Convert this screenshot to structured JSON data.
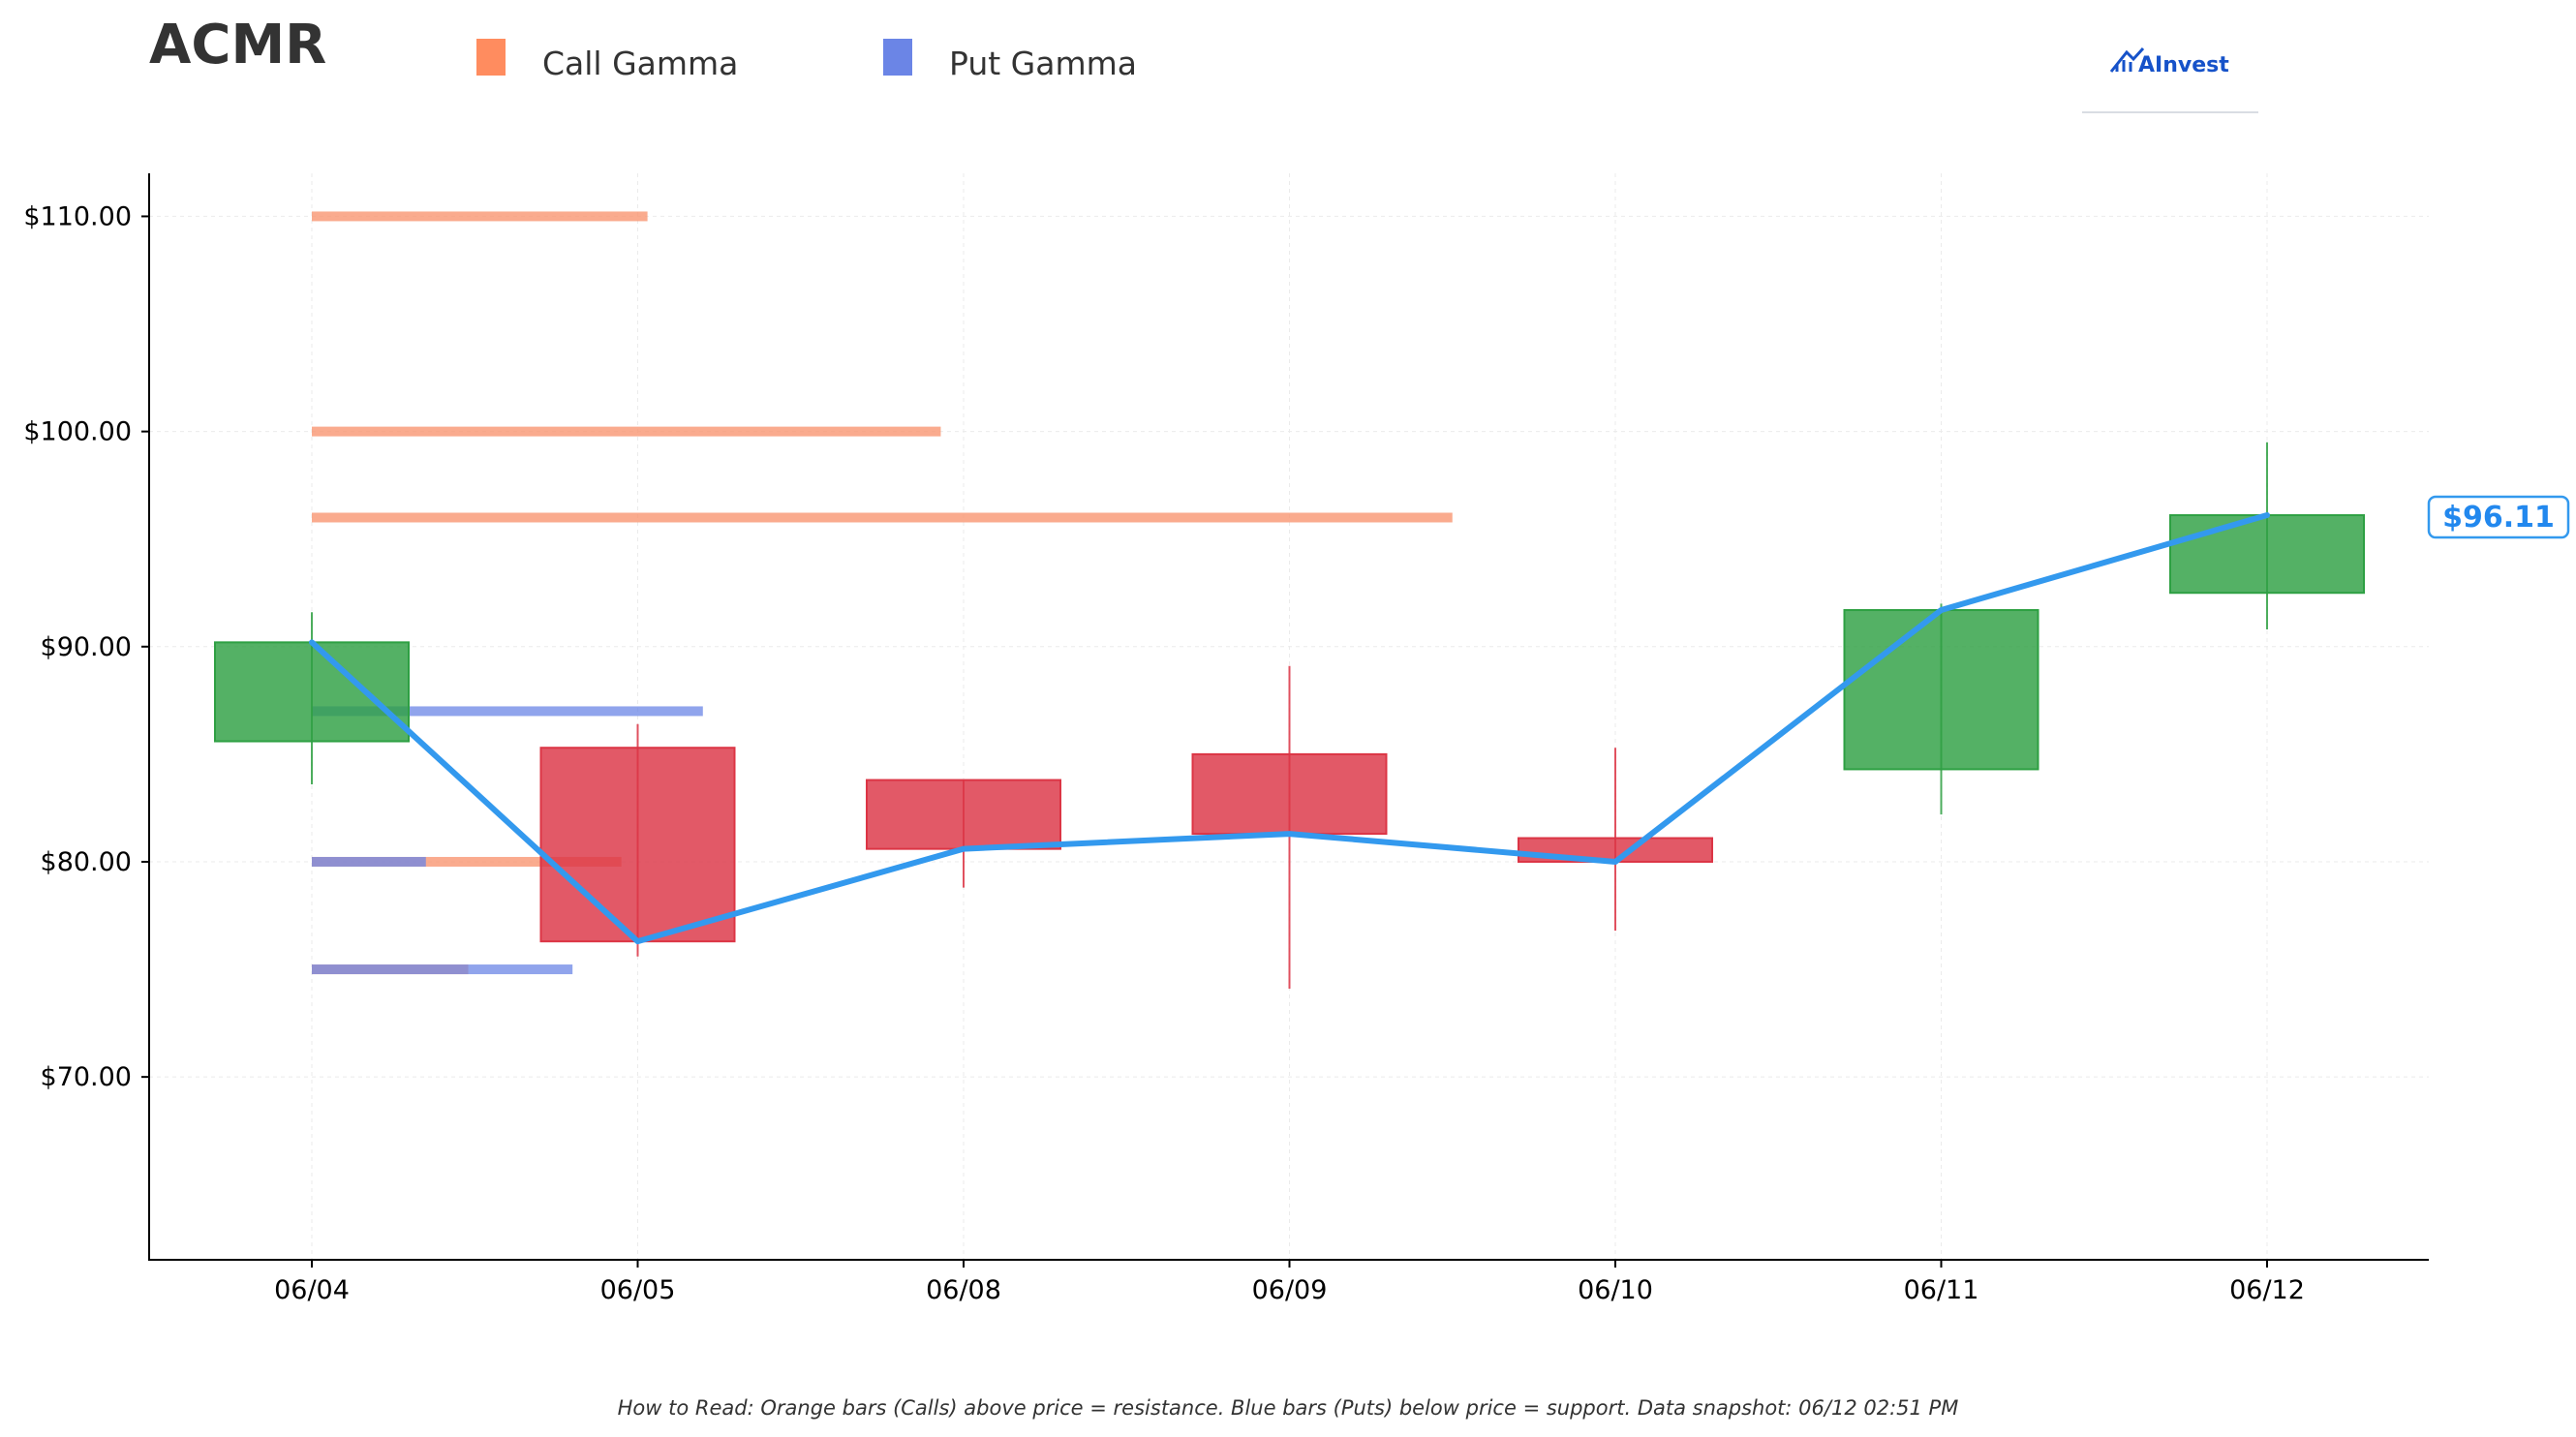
{
  "chart_data": {
    "type": "candlestick",
    "title": "ACMR",
    "legend": [
      {
        "label": "Call Gamma",
        "color": "#ff8c5f"
      },
      {
        "label": "Put Gamma",
        "color": "#6b85e6"
      }
    ],
    "categories": [
      "06/04",
      "06/05",
      "06/08",
      "06/09",
      "06/10",
      "06/11",
      "06/12"
    ],
    "candles": [
      {
        "date": "06/04",
        "open": 85.6,
        "high": 91.6,
        "low": 83.6,
        "close": 90.2
      },
      {
        "date": "06/05",
        "open": 85.3,
        "high": 86.4,
        "low": 75.6,
        "close": 76.3
      },
      {
        "date": "06/08",
        "open": 83.8,
        "high": 83.8,
        "low": 78.8,
        "close": 80.6
      },
      {
        "date": "06/09",
        "open": 85.0,
        "high": 89.1,
        "low": 74.1,
        "close": 81.3
      },
      {
        "date": "06/10",
        "open": 81.1,
        "high": 85.3,
        "low": 76.8,
        "close": 80.0
      },
      {
        "date": "06/11",
        "open": 84.3,
        "high": 92.0,
        "low": 82.2,
        "close": 91.7
      },
      {
        "date": "06/12",
        "open": 92.5,
        "high": 99.5,
        "low": 90.8,
        "close": 96.11
      }
    ],
    "close_line_color": "#3399ee",
    "last_price_label": "$96.11",
    "gamma_levels": [
      {
        "type": "call",
        "strike": 110,
        "value": 1.03
      },
      {
        "type": "call",
        "strike": 100,
        "value": 1.93
      },
      {
        "type": "call",
        "strike": 96,
        "value": 3.5
      },
      {
        "type": "put",
        "strike": 87,
        "value": 1.2
      },
      {
        "type": "call",
        "strike": 80,
        "value": 0.95
      },
      {
        "type": "put",
        "strike": 80,
        "value": 0.35
      },
      {
        "type": "call",
        "strike": 75,
        "value": 0.48
      },
      {
        "type": "put",
        "strike": 75,
        "value": 0.8
      }
    ],
    "ylim": [
      61.5,
      112
    ],
    "yticks": [
      70,
      80,
      90,
      100,
      110
    ],
    "ytick_labels": [
      "$70.00",
      "$80.00",
      "$90.00",
      "$100.00",
      "$110.00"
    ],
    "up_color": "#2ea043",
    "down_color": "#dc3545",
    "grid": true,
    "xlabel": "",
    "ylabel": ""
  },
  "brand": {
    "name": "AInvest"
  },
  "footer": {
    "note": "How to Read: Orange bars (Calls) above price = resistance. Blue bars (Puts) below price = support. Data snapshot: 06/12 02:51 PM"
  }
}
